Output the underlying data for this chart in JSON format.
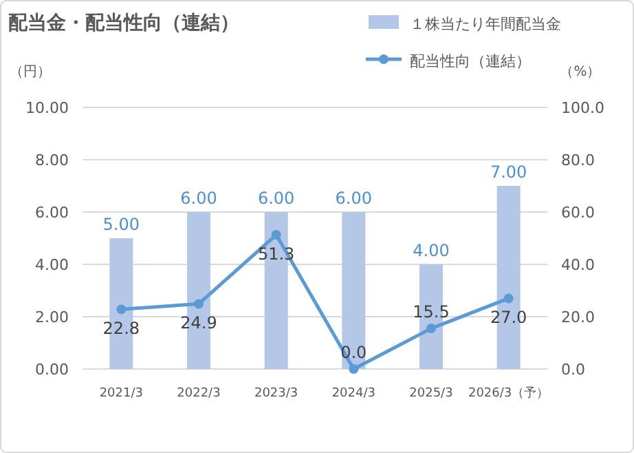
{
  "chart_data": {
    "type": "bar",
    "title": "配当金・配当性向（連結）",
    "ylabel": "（円）",
    "y2label": "（%）",
    "categories": [
      "2021/3",
      "2022/3",
      "2023/3",
      "2024/3",
      "2025/3",
      "2026/3（予）"
    ],
    "series": [
      {
        "name": "１株当たり年間配当金",
        "color": "#b4c7e7",
        "values": [
          5,
          6,
          6,
          6,
          4,
          7
        ],
        "value_labels": [
          "5.00",
          "6.00",
          "6.00",
          "6.00",
          "4.00",
          "7.00"
        ]
      },
      {
        "name": "配当性向（連結）",
        "type": "line",
        "axis": "y2",
        "color": "#5b9bd5",
        "values": [
          22.8,
          24.9,
          51.3,
          0,
          15.5,
          27
        ],
        "value_labels": [
          "22.8",
          "24.9",
          "51.3",
          "0.0",
          "15.5",
          "27.0"
        ],
        "marker": "circle"
      }
    ],
    "ylim": [
      0,
      10
    ],
    "yticks": [
      {
        "value": 0,
        "label": "0.00"
      },
      {
        "value": 2,
        "label": "2.00"
      },
      {
        "value": 4,
        "label": "4.00"
      },
      {
        "value": 6,
        "label": "6.00"
      },
      {
        "value": 8,
        "label": "8.00"
      },
      {
        "value": 10,
        "label": "10.00"
      }
    ],
    "y2lim": [
      0,
      100
    ],
    "y2ticks": [
      {
        "value": 0,
        "label": "0.0"
      },
      {
        "value": 20,
        "label": "20.0"
      },
      {
        "value": 40,
        "label": "40.0"
      },
      {
        "value": 60,
        "label": "60.0"
      },
      {
        "value": 80,
        "label": "80.0"
      },
      {
        "value": 100,
        "label": "100.0"
      }
    ],
    "grid": "y",
    "legend": "top right"
  }
}
